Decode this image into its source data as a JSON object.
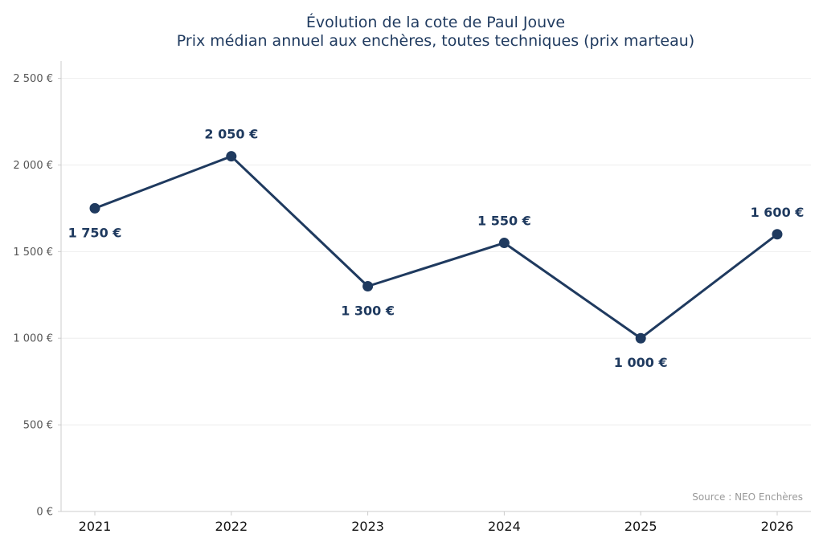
{
  "chart_data": {
    "type": "line",
    "title": "Évolution de la cote de Paul Jouve",
    "subtitle": "Prix médian annuel aux enchères, toutes techniques (prix marteau)",
    "xlabel": "",
    "ylabel": "",
    "categories": [
      "2021",
      "2022",
      "2023",
      "2024",
      "2025",
      "2026"
    ],
    "series": [
      {
        "values": [
          1750,
          2050,
          1300,
          1550,
          1000,
          1600
        ],
        "data_labels": [
          "1 750 €",
          "2 050 €",
          "1 300 €",
          "1 550 €",
          "1 000 €",
          "1 600 €"
        ],
        "label_positions": [
          "below",
          "above",
          "below",
          "above",
          "below",
          "above"
        ]
      }
    ],
    "ylim": [
      0,
      2600
    ],
    "y_ticks": [
      0,
      500,
      1000,
      1500,
      2000,
      2500
    ],
    "y_tick_labels": [
      "0 €",
      "500 €",
      "1 000 €",
      "1 500 €",
      "2 000 €",
      "2 500 €"
    ],
    "grid": true,
    "source": "Source : NEO Enchères",
    "colors": {
      "line": "#1f3a5f",
      "title": "#1f3a5f",
      "grid": "#eeeeee",
      "axis": "#cccccc",
      "source": "#999999"
    }
  }
}
